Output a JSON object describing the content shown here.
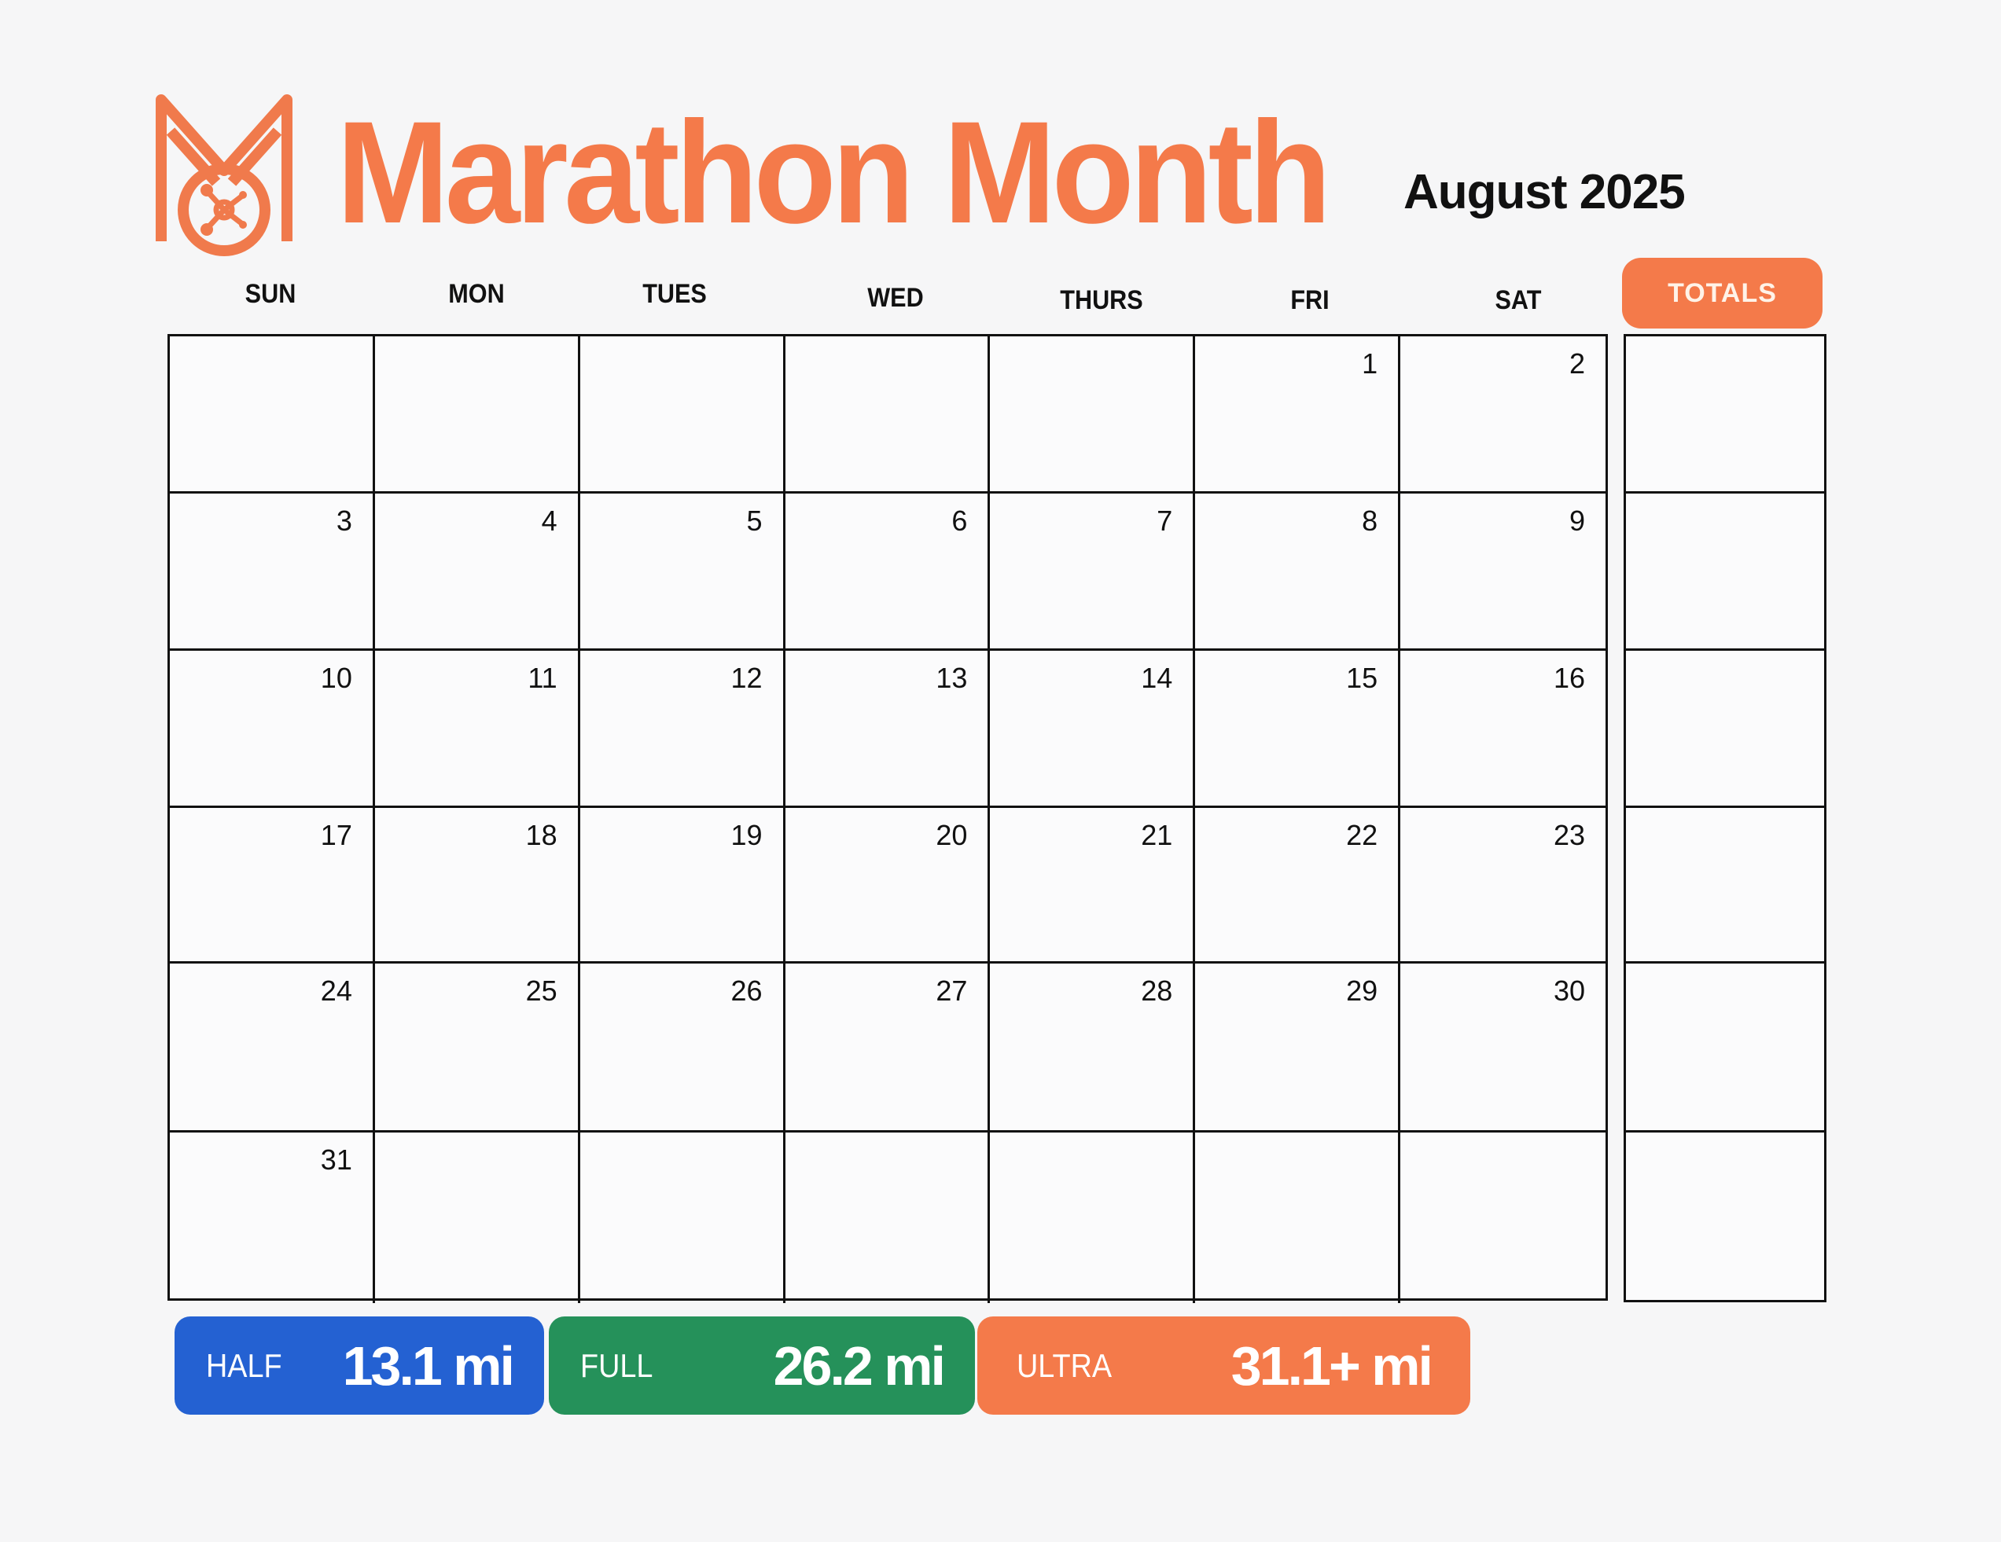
{
  "header": {
    "logo_icon": "marathon-medal-logo",
    "title": "Marathon Month",
    "month": "August 2025",
    "accent_color": "#f47a4a"
  },
  "weekdays": [
    "SUN",
    "MON",
    "TUES",
    "WED",
    "THURS",
    "FRI",
    "SAT"
  ],
  "totals": {
    "label": "TOTALS",
    "rows": [
      "",
      "",
      "",
      "",
      "",
      ""
    ]
  },
  "calendar": {
    "weeks": [
      [
        "",
        "",
        "",
        "",
        "",
        "1",
        "2"
      ],
      [
        "3",
        "4",
        "5",
        "6",
        "7",
        "8",
        "9"
      ],
      [
        "10",
        "11",
        "12",
        "13",
        "14",
        "15",
        "16"
      ],
      [
        "17",
        "18",
        "19",
        "20",
        "21",
        "22",
        "23"
      ],
      [
        "24",
        "25",
        "26",
        "27",
        "28",
        "29",
        "30"
      ],
      [
        "31",
        "",
        "",
        "",
        "",
        "",
        ""
      ]
    ]
  },
  "legend": [
    {
      "label": "HALF",
      "value": "13.1 mi",
      "color": "#2461d2"
    },
    {
      "label": "FULL",
      "value": "26.2 mi",
      "color": "#25915a"
    },
    {
      "label": "ULTRA",
      "value": "31.1+ mi",
      "color": "#f47a4a"
    }
  ]
}
